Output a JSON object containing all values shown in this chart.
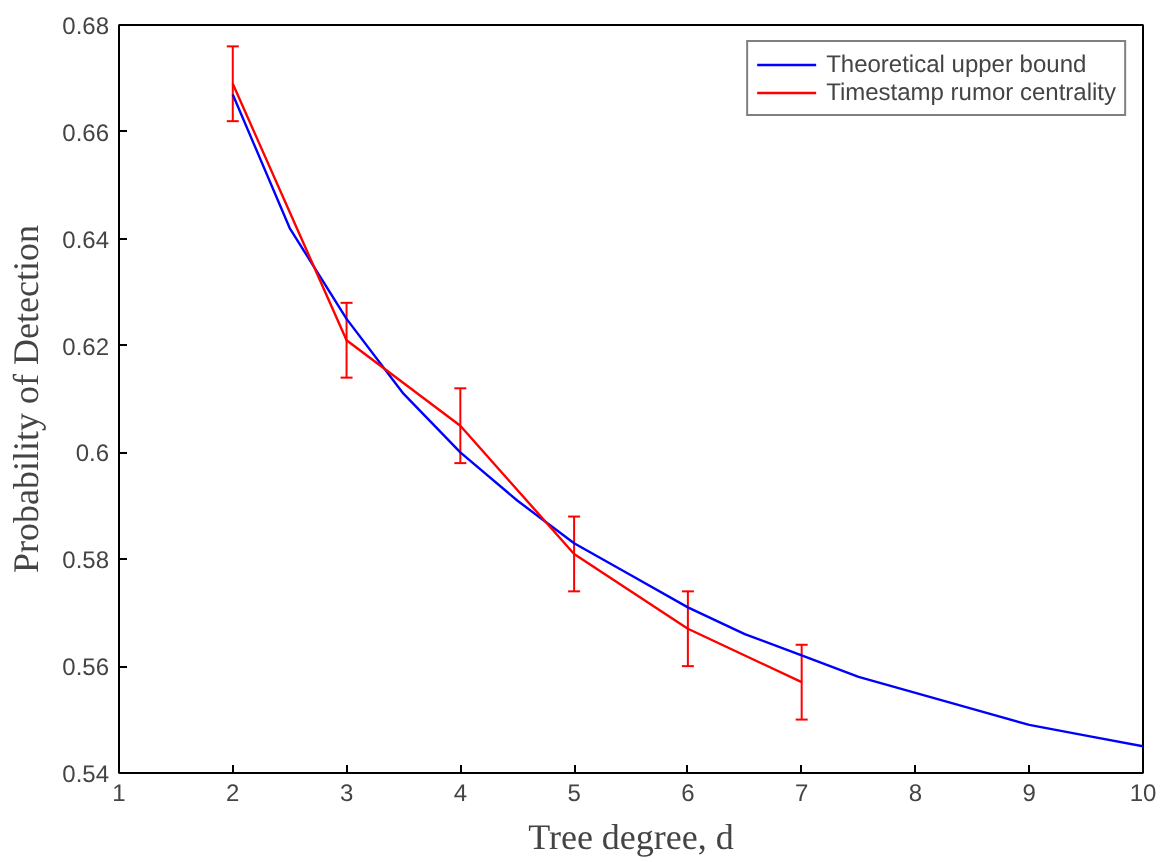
{
  "chart_data": {
    "type": "line",
    "xlabel": "Tree degree, d",
    "ylabel": "Probability of Detection",
    "xlim": [
      1,
      10
    ],
    "ylim": [
      0.54,
      0.68
    ],
    "xticks": [
      1,
      2,
      3,
      4,
      5,
      6,
      7,
      8,
      9,
      10
    ],
    "yticks": [
      0.54,
      0.56,
      0.58,
      0.6,
      0.62,
      0.64,
      0.66,
      0.68
    ],
    "grid": false,
    "legend": "top right",
    "series": [
      {
        "name": "Theoretical upper bound",
        "color": "#0000ff",
        "x": [
          2,
          2.5,
          3,
          3.5,
          4,
          4.5,
          5,
          5.5,
          6,
          6.5,
          7,
          7.5,
          8,
          8.5,
          9,
          9.5,
          10
        ],
        "values": [
          0.667,
          0.642,
          0.625,
          0.611,
          0.6,
          0.591,
          0.583,
          0.577,
          0.571,
          0.566,
          0.562,
          0.558,
          0.555,
          0.552,
          0.549,
          0.547,
          0.545
        ]
      },
      {
        "name": "Timestamp rumor centrality",
        "color": "#ff0000",
        "x": [
          2,
          3,
          4,
          5,
          6,
          7
        ],
        "values": [
          0.669,
          0.621,
          0.605,
          0.581,
          0.567,
          0.557
        ],
        "errors": [
          [
            0.662,
            0.676
          ],
          [
            0.614,
            0.628
          ],
          [
            0.598,
            0.612
          ],
          [
            0.574,
            0.588
          ],
          [
            0.56,
            0.574
          ],
          [
            0.55,
            0.564
          ]
        ]
      }
    ]
  }
}
